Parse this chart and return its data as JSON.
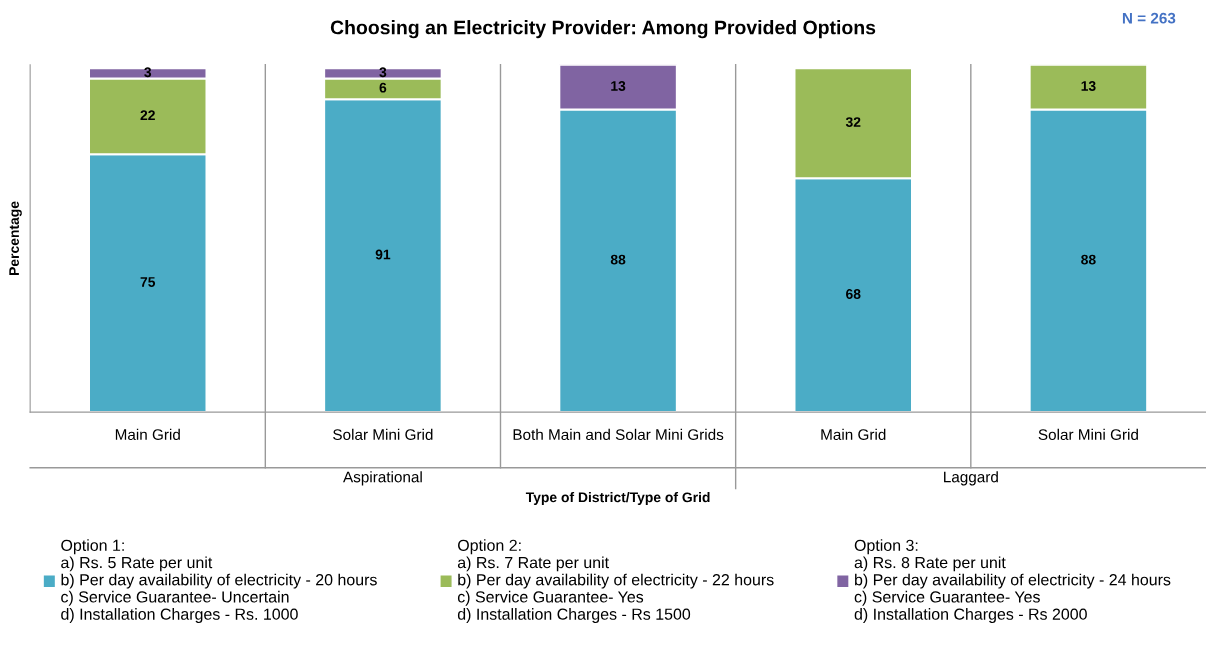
{
  "chart_data": {
    "type": "bar",
    "stacked": true,
    "title": "Choosing an Electricity Provider: Among Provided Options",
    "xlabel": "Type of District/Type of Grid",
    "ylabel": "Percentage",
    "categories": [
      "Main Grid",
      "Solar Mini Grid",
      "Both Main and Solar Mini Grids",
      "Main Grid",
      "Solar Mini Grid"
    ],
    "series": [
      {
        "name": "Option 1:\na) Rs. 5 Rate per unit\nb) Per day availability of electricity - 20 hours\nc) Service Guarantee- Uncertain\nd) Installation Charges - Rs. 1000",
        "color": "#4bacc6",
        "values": [
          75,
          91,
          88,
          68,
          88
        ]
      },
      {
        "name": "Option 2:\na) Rs. 7 Rate per unit\nb) Per day availability of electricity - 22 hours\nc) Service Guarantee- Yes\nd) Installation Charges - Rs 1500",
        "color": "#9bbb59",
        "values": [
          22,
          6,
          null,
          32,
          13
        ]
      },
      {
        "name": "Option 3:\na) Rs. 8 Rate per unit\nb) Per day availability of electricity - 24 hours\nc) Service Guarantee- Yes\nd) Installation Charges - Rs 2000",
        "color": "#8064a2",
        "values": [
          3,
          3,
          13,
          null,
          null
        ]
      }
    ],
    "annotations": [
      "N = 263",
      "Aspirational",
      "Laggard"
    ],
    "data_labels": true,
    "grid": false,
    "legend": "bottom"
  }
}
